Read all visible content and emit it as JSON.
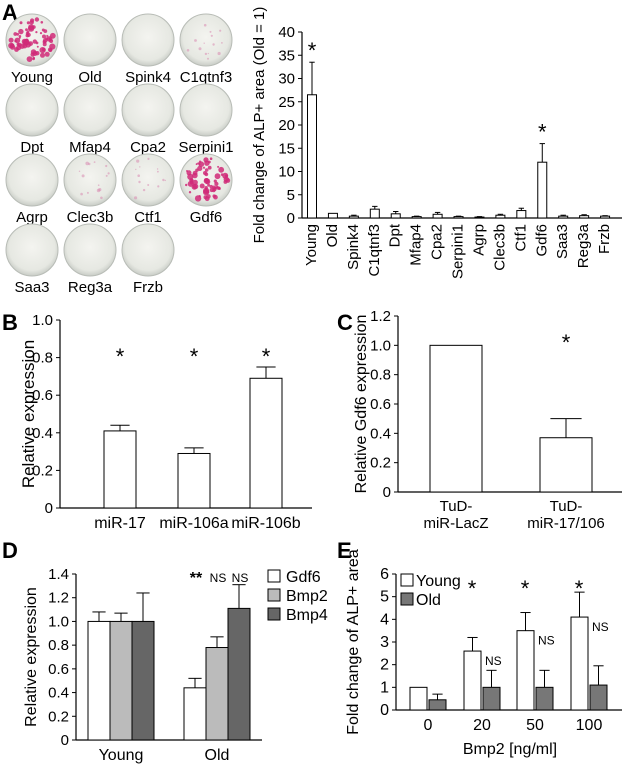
{
  "figure": {
    "panel_labels": [
      "A",
      "B",
      "C",
      "D",
      "E"
    ]
  },
  "dish_grid": {
    "labels": [
      "Young",
      "Old",
      "Spink4",
      "C1qtnf3",
      "Dpt",
      "Mfap4",
      "Cpa2",
      "Serpini1",
      "Agrp",
      "Clec3b",
      "Ctf1",
      "Gdf6",
      "Saa3",
      "Reg3a",
      "Frzb"
    ],
    "staining": [
      "strong",
      "none",
      "none",
      "faint",
      "none",
      "none",
      "none",
      "none",
      "none",
      "faint",
      "faint",
      "strong",
      "none",
      "none",
      "none"
    ]
  },
  "chart_data": [
    {
      "id": "A",
      "type": "bar",
      "ylabel": "Fold change of ALP+ area (Old = 1)",
      "ylim": [
        0,
        40
      ],
      "yticks": [
        "0",
        "5",
        "10",
        "15",
        "20",
        "25",
        "30",
        "35",
        "40"
      ],
      "categories": [
        "Young",
        "Old",
        "Spink4",
        "C1qtnf3",
        "Dpt",
        "Mfap4",
        "Cpa2",
        "Serpini1",
        "Agrp",
        "Clec3b",
        "Ctf1",
        "Gdf6",
        "Saa3",
        "Reg3a",
        "Frzb"
      ],
      "values": [
        26.5,
        1.0,
        0.4,
        1.9,
        0.9,
        0.3,
        0.8,
        0.3,
        0.2,
        0.6,
        1.6,
        12.0,
        0.4,
        0.5,
        0.4
      ],
      "errors": [
        7.0,
        0,
        0.2,
        0.6,
        0.5,
        0.1,
        0.4,
        0.1,
        0.1,
        0.2,
        0.5,
        4.0,
        0.2,
        0.2,
        0.1
      ],
      "significance": [
        "*",
        "",
        "",
        "",
        "",
        "",
        "",
        "",
        "",
        "",
        "",
        "*",
        "",
        "",
        ""
      ]
    },
    {
      "id": "B",
      "type": "bar",
      "ylabel": "Relative expression",
      "ylim": [
        0,
        1.0
      ],
      "yticks": [
        "0",
        "0.2",
        "0.4",
        "0.6",
        "0.8",
        "1.0"
      ],
      "categories": [
        "miR-17",
        "miR-106a",
        "miR-106b"
      ],
      "values": [
        0.41,
        0.29,
        0.69
      ],
      "errors": [
        0.03,
        0.03,
        0.06
      ],
      "significance": [
        "*",
        "*",
        "*"
      ]
    },
    {
      "id": "C",
      "type": "bar",
      "ylabel": "Relative Gdf6 expression",
      "ylim": [
        0,
        1.2
      ],
      "yticks": [
        "0",
        "0.2",
        "0.4",
        "0.6",
        "0.8",
        "1.0",
        "1.2"
      ],
      "categories": [
        [
          "TuD-",
          "miR-LacZ"
        ],
        [
          "TuD-",
          "miR-17/106"
        ]
      ],
      "values": [
        1.0,
        0.37
      ],
      "errors": [
        0,
        0.13
      ],
      "significance": [
        "",
        "*"
      ]
    },
    {
      "id": "D",
      "type": "bar",
      "ylabel": "Relative expression",
      "ylim": [
        0,
        1.4
      ],
      "yticks": [
        "0",
        "0.2",
        "0.4",
        "0.6",
        "0.8",
        "1.0",
        "1.2",
        "1.4"
      ],
      "categories": [
        "Young",
        "Old"
      ],
      "series": [
        {
          "name": "Gdf6",
          "color": "#ffffff",
          "values": [
            1.0,
            0.44
          ],
          "errors": [
            0.08,
            0.08
          ]
        },
        {
          "name": "Bmp2",
          "color": "#bbbbbb",
          "values": [
            1.0,
            0.78
          ],
          "errors": [
            0.07,
            0.09
          ]
        },
        {
          "name": "Bmp4",
          "color": "#666666",
          "values": [
            1.0,
            1.11
          ],
          "errors": [
            0.24,
            0.2
          ]
        }
      ],
      "annotations": [
        "**",
        "NS",
        "NS"
      ],
      "legend": "right"
    },
    {
      "id": "E",
      "type": "bar",
      "ylabel": "Fold change of ALP+ area",
      "xlabel": "Bmp2 [ng/ml]",
      "ylim": [
        0,
        6
      ],
      "yticks": [
        "0",
        "1",
        "2",
        "3",
        "4",
        "5",
        "6"
      ],
      "categories": [
        "0",
        "20",
        "50",
        "100"
      ],
      "series": [
        {
          "name": "Young",
          "color": "#ffffff",
          "values": [
            1.0,
            2.6,
            3.5,
            4.1
          ],
          "errors": [
            0,
            0.6,
            0.8,
            1.1
          ]
        },
        {
          "name": "Old",
          "color": "#777777",
          "values": [
            0.45,
            1.0,
            1.0,
            1.1
          ],
          "errors": [
            0.25,
            0.75,
            0.75,
            0.85
          ]
        }
      ],
      "significance": [
        "",
        "*",
        "*",
        "*"
      ],
      "ns_labels": [
        "",
        "NS",
        "NS",
        "NS"
      ],
      "legend": "top-left"
    }
  ]
}
